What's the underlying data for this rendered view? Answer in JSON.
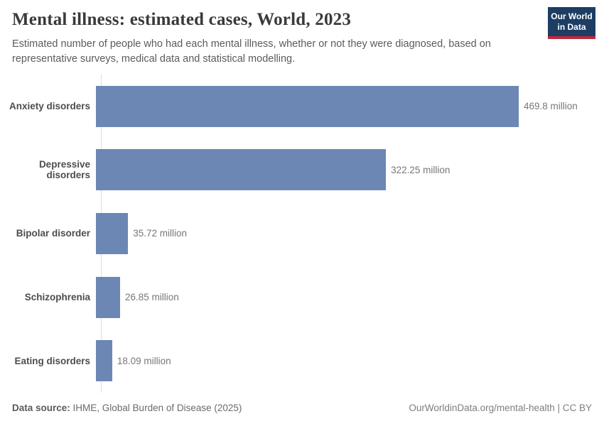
{
  "header": {
    "title": "Mental illness: estimated cases, World, 2023",
    "subtitle": "Estimated number of people who had each mental illness, whether or not they were diagnosed, based on representative surveys, medical data and statistical modelling.",
    "logo": {
      "line1": "Our World",
      "line2": "in Data"
    }
  },
  "chart_data": {
    "type": "bar",
    "orientation": "horizontal",
    "title": "Mental illness: estimated cases, World, 2023",
    "categories": [
      "Anxiety disorders",
      "Depressive disorders",
      "Bipolar disorder",
      "Schizophrenia",
      "Eating disorders"
    ],
    "values": [
      469.8,
      322.25,
      35.72,
      26.85,
      18.09
    ],
    "value_labels": [
      "469.8 million",
      "322.25 million",
      "35.72 million",
      "26.85 million",
      "18.09 million"
    ],
    "unit": "million",
    "xlabel": "",
    "ylabel": "",
    "xlim": [
      0,
      469.8
    ],
    "grid": false,
    "legend": "none",
    "bar_color": "#6c87b4"
  },
  "footer": {
    "datasource_label": "Data source:",
    "datasource_value": " IHME, Global Burden of Disease (2025)",
    "note_right": "OurWorldinData.org/mental-health | CC BY"
  },
  "colors": {
    "bar": "#6c87b4",
    "logo_navy": "#1d3d63",
    "logo_red": "#c0273d",
    "title_text": "#3a3a3a",
    "subtitle_text": "#5b5b5b",
    "value_text": "#777777",
    "axis_line": "#dcdcdc"
  }
}
